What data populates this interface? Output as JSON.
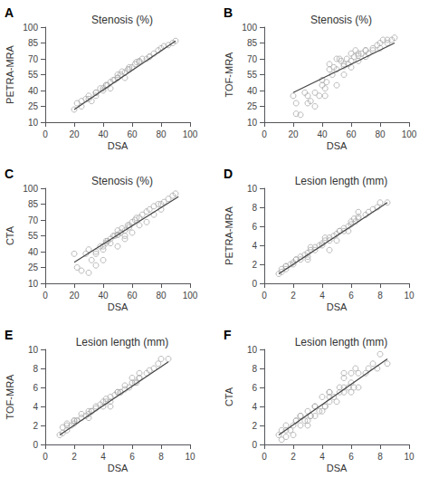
{
  "chart_data": [
    {
      "type": "scatter",
      "title": "Stenosis (%)",
      "annotation": "A",
      "xlabel": "DSA",
      "ylabel": "PETRA-MRA",
      "xlim": [
        0,
        100
      ],
      "ylim": [
        10,
        100
      ],
      "xticks": [
        0,
        20,
        40,
        60,
        80,
        100
      ],
      "yticks": [
        10,
        25,
        40,
        55,
        70,
        85,
        100
      ],
      "grid": false,
      "series": [
        {
          "type": "scatter",
          "marker": "circle",
          "color": "#aaaaaa",
          "x": [
            20,
            22,
            25,
            28,
            30,
            32,
            35,
            35,
            38,
            40,
            40,
            42,
            43,
            45,
            45,
            47,
            48,
            50,
            50,
            52,
            53,
            55,
            55,
            57,
            58,
            60,
            62,
            63,
            65,
            67,
            70,
            72,
            75,
            78,
            80,
            82,
            85,
            88,
            90,
            25,
            30,
            35,
            42,
            50,
            58,
            65,
            72
          ],
          "values": [
            22,
            28,
            25,
            32,
            35,
            30,
            35,
            38,
            42,
            42,
            40,
            45,
            45,
            42,
            48,
            50,
            50,
            52,
            55,
            55,
            58,
            52,
            57,
            60,
            62,
            62,
            65,
            67,
            68,
            70,
            70,
            72,
            75,
            78,
            80,
            82,
            83,
            85,
            87,
            30,
            32,
            38,
            45,
            52,
            60,
            67,
            72
          ]
        },
        {
          "type": "line",
          "color": "#444444",
          "x": [
            20,
            90
          ],
          "values": [
            22,
            87
          ]
        }
      ]
    },
    {
      "type": "scatter",
      "title": "Stenosis (%)",
      "annotation": "B",
      "xlabel": "DSA",
      "ylabel": "TOF-MRA",
      "xlim": [
        0,
        100
      ],
      "ylim": [
        10,
        100
      ],
      "xticks": [
        0,
        20,
        40,
        60,
        80,
        100
      ],
      "yticks": [
        10,
        25,
        40,
        55,
        70,
        85,
        100
      ],
      "grid": false,
      "series": [
        {
          "type": "scatter",
          "marker": "circle",
          "color": "#aaaaaa",
          "x": [
            20,
            22,
            25,
            28,
            30,
            32,
            35,
            38,
            40,
            42,
            43,
            45,
            47,
            48,
            50,
            52,
            53,
            55,
            57,
            58,
            60,
            62,
            63,
            65,
            67,
            70,
            72,
            75,
            78,
            80,
            82,
            85,
            88,
            90,
            22,
            30,
            35,
            42,
            50,
            55,
            60,
            65,
            70,
            75,
            80,
            85,
            40,
            45,
            50,
            55,
            60,
            65,
            70
          ],
          "values": [
            35,
            28,
            17,
            38,
            35,
            30,
            38,
            35,
            45,
            42,
            48,
            60,
            55,
            62,
            60,
            70,
            68,
            63,
            70,
            65,
            68,
            72,
            78,
            73,
            75,
            78,
            75,
            80,
            83,
            85,
            88,
            85,
            88,
            90,
            18,
            28,
            25,
            35,
            45,
            55,
            62,
            68,
            72,
            78,
            80,
            88,
            50,
            65,
            70,
            65,
            75,
            75,
            78
          ]
        },
        {
          "type": "line",
          "color": "#444444",
          "x": [
            20,
            90
          ],
          "values": [
            38,
            85
          ]
        }
      ]
    },
    {
      "type": "scatter",
      "title": "Stenosis (%)",
      "annotation": "C",
      "xlabel": "DSA",
      "ylabel": "CTA",
      "xlim": [
        0,
        100
      ],
      "ylim": [
        10,
        100
      ],
      "xticks": [
        0,
        20,
        40,
        60,
        80,
        100
      ],
      "yticks": [
        10,
        25,
        40,
        55,
        70,
        85,
        100
      ],
      "grid": false,
      "series": [
        {
          "type": "scatter",
          "marker": "circle",
          "color": "#aaaaaa",
          "x": [
            20,
            22,
            25,
            28,
            30,
            32,
            35,
            35,
            38,
            40,
            40,
            42,
            43,
            45,
            45,
            47,
            48,
            50,
            50,
            52,
            53,
            55,
            55,
            57,
            58,
            60,
            62,
            63,
            65,
            67,
            70,
            72,
            75,
            78,
            80,
            82,
            85,
            88,
            90,
            30,
            35,
            40,
            50,
            55,
            60,
            65,
            70,
            75,
            80,
            42,
            50,
            58
          ],
          "values": [
            38,
            25,
            22,
            38,
            42,
            32,
            40,
            38,
            45,
            45,
            42,
            48,
            50,
            52,
            48,
            55,
            55,
            56,
            60,
            58,
            62,
            55,
            60,
            65,
            63,
            68,
            70,
            72,
            72,
            75,
            78,
            80,
            83,
            85,
            85,
            87,
            90,
            93,
            95,
            20,
            27,
            32,
            45,
            52,
            58,
            65,
            68,
            75,
            80,
            50,
            56,
            65
          ]
        },
        {
          "type": "line",
          "color": "#444444",
          "x": [
            20,
            92
          ],
          "values": [
            30,
            92
          ]
        }
      ]
    },
    {
      "type": "scatter",
      "title": "Lesion length (mm)",
      "annotation": "D",
      "xlabel": "DSA",
      "ylabel": "PETRA-MRA",
      "xlim": [
        0,
        10
      ],
      "ylim": [
        0,
        10
      ],
      "xticks": [
        0,
        2,
        4,
        6,
        8,
        10
      ],
      "yticks": [
        0,
        2,
        4,
        6,
        8,
        10
      ],
      "grid": false,
      "series": [
        {
          "type": "scatter",
          "marker": "circle",
          "color": "#aaaaaa",
          "x": [
            1.0,
            1.2,
            1.5,
            1.5,
            1.8,
            2.0,
            2.0,
            2.2,
            2.5,
            2.5,
            2.8,
            3.0,
            3.0,
            3.2,
            3.5,
            3.5,
            3.8,
            4.0,
            4.0,
            4.2,
            4.5,
            4.5,
            4.8,
            5.0,
            5.2,
            5.5,
            5.5,
            5.8,
            6.0,
            6.0,
            6.3,
            6.5,
            6.5,
            7.0,
            7.2,
            7.5,
            7.8,
            8.0,
            8.5,
            1.2,
            2.2,
            3.2,
            4.2,
            5.2,
            6.2,
            1.5,
            3.0,
            5.0,
            6.5,
            4.5,
            5.8
          ],
          "values": [
            1.0,
            1.2,
            1.5,
            1.8,
            2.0,
            2.0,
            2.2,
            2.5,
            2.5,
            2.8,
            3.0,
            2.8,
            3.2,
            3.5,
            3.5,
            3.8,
            4.0,
            4.0,
            4.2,
            4.5,
            4.5,
            4.8,
            5.0,
            5.2,
            5.5,
            5.5,
            5.8,
            6.0,
            6.2,
            6.5,
            6.5,
            6.8,
            7.0,
            7.2,
            7.5,
            7.8,
            8.0,
            8.5,
            8.5,
            1.5,
            2.5,
            3.8,
            4.8,
            5.5,
            6.8,
            1.8,
            2.5,
            4.5,
            7.5,
            3.5,
            5.5
          ]
        },
        {
          "type": "line",
          "color": "#444444",
          "x": [
            1.0,
            8.5
          ],
          "values": [
            1.0,
            8.5
          ]
        }
      ]
    },
    {
      "type": "scatter",
      "title": "Lesion length (mm)",
      "annotation": "E",
      "xlabel": "DSA",
      "ylabel": "TOF-MRA",
      "xlim": [
        0,
        10
      ],
      "ylim": [
        0,
        10
      ],
      "xticks": [
        0,
        2,
        4,
        6,
        8,
        10
      ],
      "yticks": [
        0,
        2,
        4,
        6,
        8,
        10
      ],
      "grid": false,
      "series": [
        {
          "type": "scatter",
          "marker": "circle",
          "color": "#aaaaaa",
          "x": [
            1.0,
            1.2,
            1.5,
            1.5,
            1.8,
            2.0,
            2.0,
            2.2,
            2.5,
            2.5,
            2.8,
            3.0,
            3.0,
            3.2,
            3.5,
            3.5,
            3.8,
            4.0,
            4.0,
            4.2,
            4.5,
            4.5,
            4.8,
            5.0,
            5.2,
            5.5,
            5.5,
            5.8,
            6.0,
            6.0,
            6.3,
            6.5,
            6.5,
            7.0,
            7.2,
            7.5,
            7.8,
            8.0,
            8.5,
            1.2,
            2.2,
            3.2,
            4.2,
            5.2,
            6.2,
            1.5,
            3.0,
            5.0,
            6.5,
            2.0,
            4.5
          ],
          "values": [
            1.0,
            1.2,
            1.5,
            2.0,
            2.0,
            2.2,
            2.5,
            2.5,
            2.8,
            3.2,
            3.0,
            2.8,
            3.2,
            3.5,
            3.8,
            4.0,
            4.2,
            4.0,
            4.5,
            4.8,
            4.5,
            5.0,
            5.2,
            5.5,
            5.5,
            5.8,
            6.2,
            6.0,
            6.5,
            7.0,
            6.5,
            7.0,
            7.5,
            7.5,
            7.8,
            8.0,
            8.5,
            9.0,
            9.0,
            1.8,
            2.5,
            3.5,
            4.5,
            5.5,
            6.5,
            2.2,
            3.5,
            5.5,
            7.0,
            2.5,
            4.0
          ]
        },
        {
          "type": "line",
          "color": "#444444",
          "x": [
            1.0,
            8.5
          ],
          "values": [
            1.0,
            8.7
          ]
        }
      ]
    },
    {
      "type": "scatter",
      "title": "Lesion length (mm)",
      "annotation": "F",
      "xlabel": "DSA",
      "ylabel": "CTA",
      "xlim": [
        0,
        10
      ],
      "ylim": [
        0,
        10
      ],
      "xticks": [
        0,
        2,
        4,
        6,
        8,
        10
      ],
      "yticks": [
        0,
        2,
        4,
        6,
        8,
        10
      ],
      "grid": false,
      "series": [
        {
          "type": "scatter",
          "marker": "circle",
          "color": "#aaaaaa",
          "x": [
            1.0,
            1.2,
            1.5,
            1.5,
            1.8,
            2.0,
            2.0,
            2.2,
            2.5,
            2.5,
            2.8,
            3.0,
            3.0,
            3.2,
            3.5,
            3.5,
            3.8,
            4.0,
            4.0,
            4.2,
            4.5,
            4.5,
            4.8,
            5.0,
            5.2,
            5.5,
            5.5,
            5.8,
            6.0,
            6.0,
            6.3,
            6.5,
            6.5,
            7.0,
            7.2,
            7.5,
            7.8,
            8.0,
            8.5,
            1.2,
            2.2,
            3.2,
            4.2,
            5.2,
            6.2,
            1.5,
            2.5,
            3.0,
            4.5,
            5.5,
            6.0,
            3.5,
            4.5,
            5.5
          ],
          "values": [
            1.0,
            0.5,
            1.5,
            0.8,
            1.5,
            2.0,
            1.0,
            2.5,
            2.0,
            3.0,
            2.5,
            2.0,
            3.5,
            3.0,
            3.0,
            4.0,
            3.5,
            3.5,
            5.0,
            4.0,
            4.5,
            5.5,
            5.0,
            4.5,
            6.0,
            5.5,
            7.0,
            6.0,
            5.5,
            6.5,
            8.0,
            7.5,
            6.0,
            7.5,
            8.0,
            8.5,
            8.0,
            9.5,
            8.5,
            1.5,
            2.5,
            3.0,
            4.0,
            5.5,
            6.0,
            2.0,
            3.0,
            2.5,
            5.0,
            6.0,
            7.5,
            4.0,
            5.5,
            7.5
          ]
        },
        {
          "type": "line",
          "color": "#444444",
          "x": [
            1.0,
            8.5
          ],
          "values": [
            1.0,
            9.0
          ]
        }
      ]
    }
  ]
}
